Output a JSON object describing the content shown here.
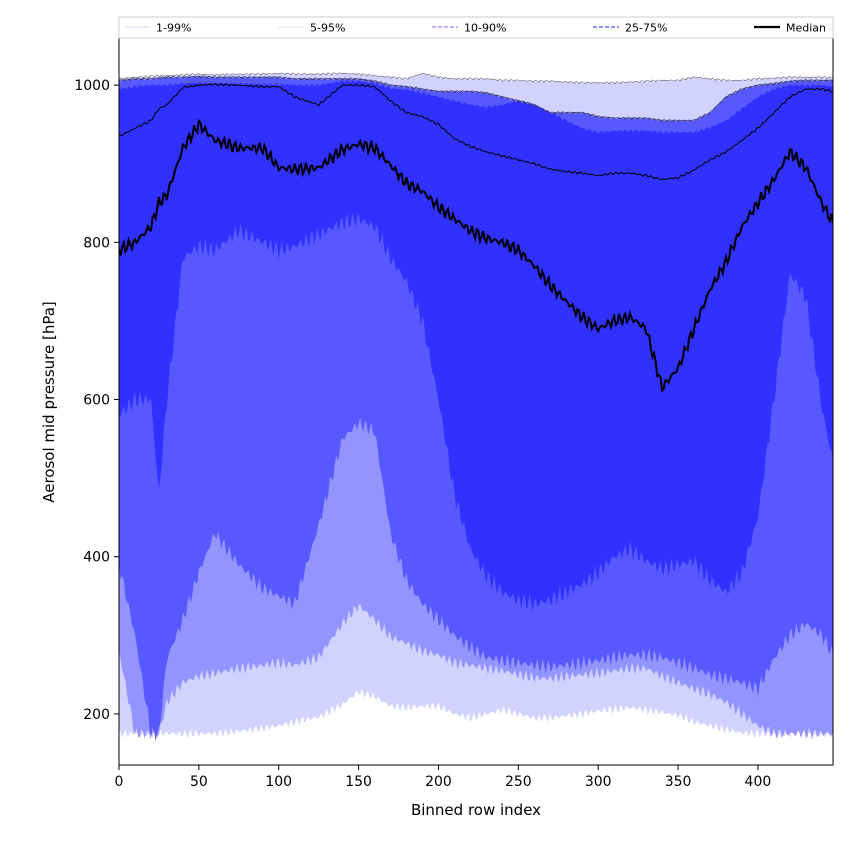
{
  "chart_data": {
    "type": "area",
    "xlabel": "Binned row index",
    "ylabel": "Aerosol mid pressure [hPa]",
    "xlim": [
      0,
      447
    ],
    "ylim": [
      135,
      1060
    ],
    "y_axis_inverted": false,
    "x_ticks": [
      0,
      50,
      100,
      150,
      200,
      250,
      300,
      350,
      400
    ],
    "y_ticks": [
      200,
      400,
      600,
      800,
      1000
    ],
    "legend_position": "top",
    "legend": [
      {
        "label": "1-99%",
        "color": "#d6d6ff",
        "style": "solid-thin"
      },
      {
        "label": "5-95%",
        "color": "#b8b8ff",
        "style": "dotted"
      },
      {
        "label": "10-90%",
        "color": "#8a8aff",
        "style": "dashed"
      },
      {
        "label": "25-75%",
        "color": "#5252ff",
        "style": "dashed"
      },
      {
        "label": "Median",
        "color": "#000000",
        "style": "solid"
      }
    ],
    "x": [
      0,
      10,
      20,
      25,
      30,
      40,
      50,
      60,
      75,
      90,
      100,
      110,
      125,
      140,
      150,
      160,
      170,
      180,
      190,
      200,
      210,
      220,
      230,
      240,
      250,
      260,
      270,
      280,
      290,
      300,
      310,
      320,
      330,
      340,
      350,
      360,
      370,
      380,
      390,
      400,
      410,
      420,
      430,
      440,
      447
    ],
    "bands": [
      {
        "name": "1-99%",
        "color": "#d2d2ff",
        "lower": [
          175,
          175,
          175,
          175,
          175,
          175,
          175,
          175,
          178,
          182,
          185,
          190,
          196,
          212,
          228,
          222,
          210,
          208,
          210,
          210,
          200,
          195,
          200,
          205,
          200,
          195,
          195,
          198,
          200,
          204,
          206,
          208,
          205,
          202,
          198,
          190,
          185,
          180,
          176,
          175,
          175,
          175,
          175,
          175,
          175
        ],
        "upper": [
          1008,
          1010,
          1011,
          1012,
          1012,
          1013,
          1014,
          1013,
          1014,
          1014,
          1015,
          1014,
          1014,
          1015,
          1014,
          1012,
          1010,
          1008,
          1015,
          1010,
          1008,
          1008,
          1008,
          1006,
          1006,
          1005,
          1005,
          1004,
          1003,
          1003,
          1003,
          1004,
          1005,
          1006,
          1006,
          1010,
          1008,
          1006,
          1006,
          1008,
          1009,
          1010,
          1010,
          1010,
          1009
        ]
      },
      {
        "name": "5-95%",
        "color": "#9494ff",
        "lower": [
          280,
          175,
          175,
          175,
          215,
          240,
          248,
          252,
          258,
          262,
          265,
          262,
          272,
          315,
          338,
          320,
          298,
          290,
          280,
          275,
          265,
          262,
          258,
          255,
          250,
          246,
          245,
          248,
          250,
          252,
          255,
          258,
          258,
          248,
          240,
          232,
          225,
          215,
          200,
          185,
          175,
          175,
          175,
          175,
          175
        ],
        "upper": [
          1006,
          1008,
          1008,
          1009,
          1010,
          1010,
          1011,
          1010,
          1010,
          1010,
          1010,
          1008,
          1008,
          1008,
          1008,
          1005,
          1000,
          998,
          995,
          992,
          992,
          992,
          990,
          985,
          980,
          975,
          965,
          965,
          965,
          960,
          958,
          958,
          958,
          955,
          955,
          955,
          965,
          985,
          995,
          1000,
          1002,
          1005,
          1006,
          1006,
          1006
        ]
      },
      {
        "name": "10-90%",
        "color": "#5858ff",
        "lower": [
          390,
          300,
          175,
          175,
          270,
          320,
          380,
          430,
          390,
          360,
          350,
          340,
          440,
          550,
          570,
          560,
          430,
          370,
          340,
          320,
          300,
          285,
          272,
          268,
          265,
          262,
          260,
          262,
          265,
          268,
          272,
          275,
          275,
          272,
          265,
          258,
          250,
          245,
          240,
          232,
          270,
          300,
          315,
          300,
          275
        ]
      },
      {
        "name": "25-75%",
        "color": "#3030ff",
        "lower": [
          580,
          600,
          600,
          480,
          600,
          780,
          795,
          790,
          815,
          800,
          790,
          795,
          810,
          825,
          830,
          820,
          780,
          750,
          700,
          600,
          480,
          410,
          375,
          355,
          345,
          340,
          345,
          355,
          365,
          380,
          400,
          410,
          395,
          385,
          390,
          395,
          370,
          355,
          380,
          450,
          600,
          760,
          730,
          590,
          520
        ],
        "upper": [
          995,
          998,
          1000,
          1000,
          1000,
          1002,
          1003,
          1002,
          1002,
          1001,
          1001,
          1000,
          1000,
          1005,
          1005,
          1002,
          996,
          994,
          990,
          985,
          980,
          975,
          972,
          975,
          980,
          975,
          965,
          955,
          945,
          940,
          942,
          942,
          942,
          940,
          940,
          940,
          946,
          955,
          970,
          985,
          995,
          1000,
          1000,
          1000,
          998
        ]
      }
    ],
    "quartile_lines": {
      "p75": [
        935,
        945,
        955,
        970,
        975,
        997,
        1000,
        1001,
        1000,
        998,
        998,
        985,
        975,
        1000,
        1000,
        998,
        980,
        965,
        960,
        950,
        932,
        922,
        915,
        910,
        905,
        900,
        893,
        890,
        888,
        885,
        888,
        888,
        885,
        880,
        882,
        892,
        905,
        915,
        930,
        945,
        965,
        985,
        995,
        995,
        992
      ],
      "p25": [
        790,
        800,
        820,
        850,
        860,
        920,
        950,
        930,
        920,
        920,
        895,
        893,
        895,
        918,
        925,
        920,
        898,
        875,
        865,
        845,
        830,
        815,
        805,
        800,
        790,
        770,
        745,
        725,
        705,
        690,
        700,
        705,
        690,
        615,
        640,
        690,
        740,
        775,
        820,
        850,
        880,
        915,
        895,
        850,
        825
      ]
    },
    "median": [
      790,
      800,
      820,
      850,
      860,
      920,
      950,
      930,
      920,
      920,
      895,
      893,
      895,
      918,
      925,
      920,
      898,
      875,
      865,
      845,
      830,
      815,
      805,
      800,
      790,
      770,
      745,
      725,
      705,
      690,
      700,
      705,
      690,
      615,
      640,
      690,
      740,
      775,
      820,
      850,
      880,
      915,
      895,
      850,
      825
    ]
  }
}
